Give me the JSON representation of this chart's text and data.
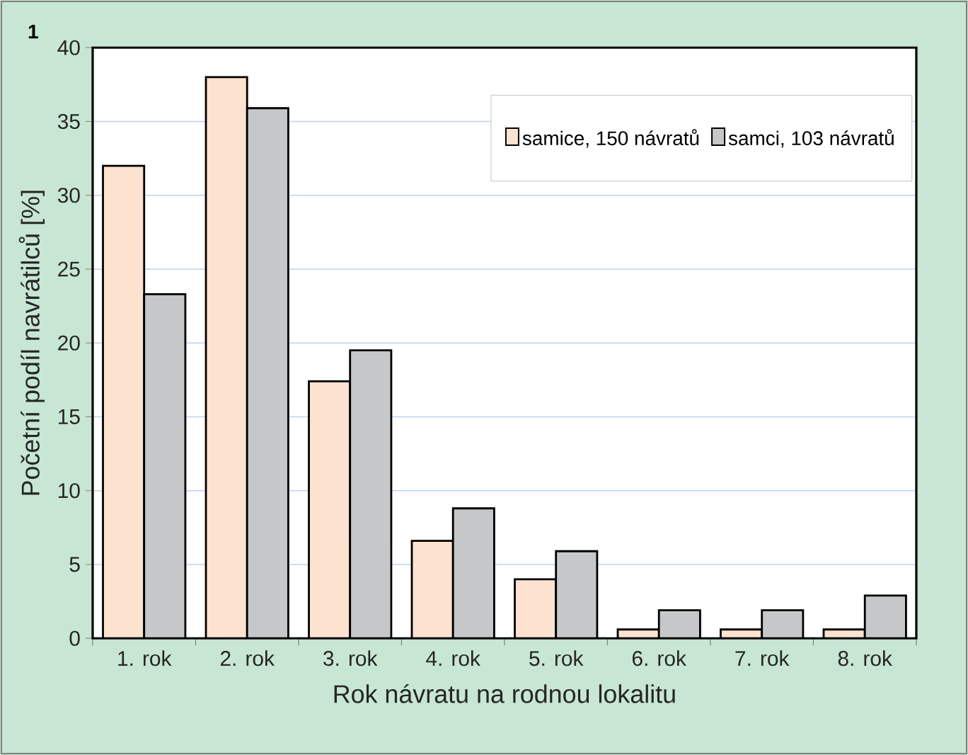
{
  "chart_data": {
    "type": "bar",
    "xlabel": "Rok návratu na rodnou lokalitu",
    "ylabel": "Početní podíl navrátilců [%]",
    "annotations": [
      "1"
    ],
    "categories": [
      "1. rok",
      "2. rok",
      "3. rok",
      "4. rok",
      "5. rok",
      "6. rok",
      "7. rok",
      "8. rok"
    ],
    "series": [
      {
        "name": "samice, 150 návratů",
        "color": "#fde3cf",
        "values": [
          32,
          38,
          17.4,
          6.6,
          4.0,
          0.6,
          0.6,
          0.6
        ]
      },
      {
        "name": "samci, 103 návratů",
        "color": "#c6c7c8",
        "values": [
          23.3,
          35.9,
          19.5,
          8.8,
          5.9,
          1.9,
          1.9,
          2.9
        ]
      }
    ],
    "ylim": [
      0,
      40
    ],
    "yticks": [
      0,
      5,
      10,
      15,
      20,
      25,
      30,
      35,
      40
    ],
    "grid": "y",
    "legend": "top right"
  }
}
